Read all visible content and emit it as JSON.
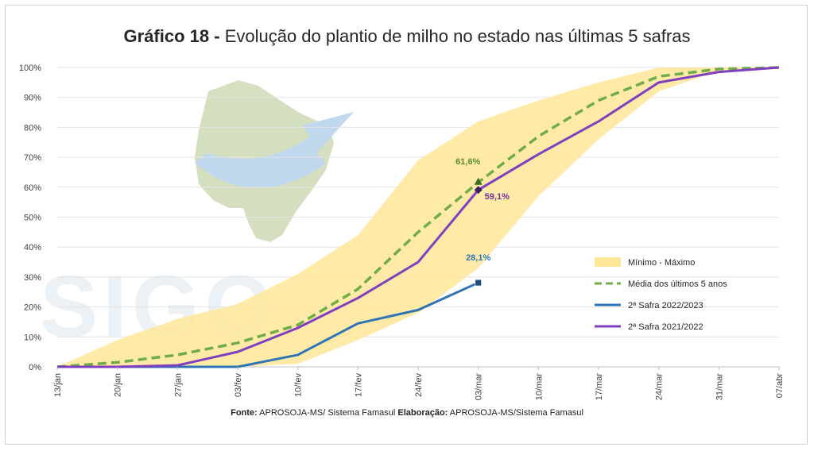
{
  "title": {
    "bold": "Gráfico 18 -",
    "text": "Evolução do plantio de milho no estado nas últimas 5 safras"
  },
  "source": {
    "fonte_label": "Fonte:",
    "fonte": "APROSOJA-MS/ Sistema Famasul",
    "elab_label": "Elaboração:",
    "elab": "APROSOJA-MS/Sistema Famasul"
  },
  "watermark": {
    "text": "SIGO",
    "land_color": "#8fae5a",
    "arrow_color": "#5b9bd5"
  },
  "chart_data": {
    "type": "line",
    "categories": [
      "13/jan",
      "20/jan",
      "27/jan",
      "03/fev",
      "10/fev",
      "17/fev",
      "24/fev",
      "03/mar",
      "10/mar",
      "17/mar",
      "24/mar",
      "31/mar",
      "07/abr"
    ],
    "ylim": [
      0,
      100
    ],
    "yticks": [
      "0%",
      "10%",
      "20%",
      "30%",
      "40%",
      "50%",
      "60%",
      "70%",
      "80%",
      "90%",
      "100%"
    ],
    "grid": true,
    "legend_position": "right",
    "band": {
      "name": "Mínimo - Máximo",
      "color": "#ffe699",
      "min": [
        0,
        0,
        0,
        0,
        1,
        9,
        18,
        33,
        57,
        76,
        92,
        99,
        100
      ],
      "max": [
        0,
        9,
        16,
        21,
        31,
        44,
        69,
        82,
        89,
        95,
        100,
        100,
        100
      ]
    },
    "series": [
      {
        "name": "Média dos últimos 5 anos",
        "color": "#70ad47",
        "dash": true,
        "values": [
          0,
          1.5,
          4,
          8,
          14,
          26,
          45,
          61.6,
          77,
          89,
          97,
          99.5,
          100
        ]
      },
      {
        "name": "2ª Safra 2022/2023",
        "color": "#2e75b6",
        "dash": false,
        "values": [
          0,
          0,
          0,
          0,
          4,
          14.5,
          19,
          28.1,
          null,
          null,
          null,
          null,
          null
        ]
      },
      {
        "name": "2ª Safra 2021/2022",
        "color": "#7f3fbf",
        "dash": false,
        "values": [
          0,
          0,
          0.5,
          5,
          13,
          23,
          35,
          59.1,
          71,
          82,
          95,
          98.5,
          100
        ]
      }
    ],
    "annotations": [
      {
        "label": "61,6%",
        "series": 0,
        "index": 7,
        "color": "#5a8f2a"
      },
      {
        "label": "59,1%",
        "series": 2,
        "index": 7,
        "color": "#7030a0"
      },
      {
        "label": "28,1%",
        "series": 1,
        "index": 7,
        "color": "#2e75b6"
      }
    ]
  }
}
